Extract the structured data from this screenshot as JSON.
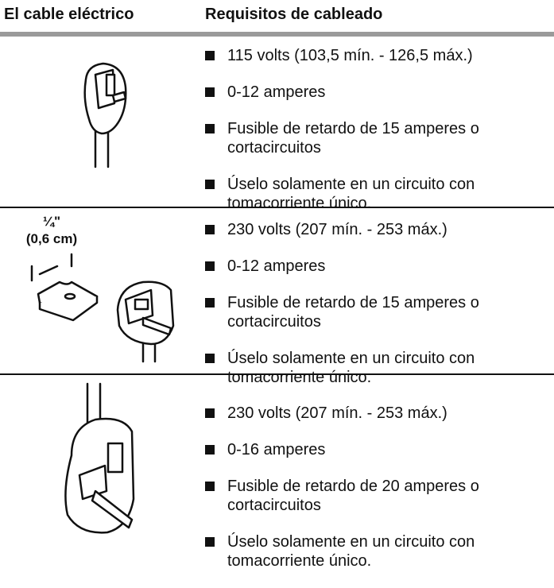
{
  "header": {
    "col1": "El cable eléctrico",
    "col2": "Requisitos de cableado"
  },
  "rows": [
    {
      "items": [
        "115 volts (103,5 mín. - 126,5 máx.)",
        "0-12 amperes",
        "Fusible de retardo de 15 amperes o cortacircuitos",
        "Úselo solamente en un circuito con tomacorriente único."
      ]
    },
    {
      "figure_labels": [
        "¼\"",
        "(0,6 cm)"
      ],
      "items": [
        "230 volts (207 mín. - 253 máx.)",
        "0-12 amperes",
        "Fusible de retardo de 15 amperes o cortacircuitos",
        "Úselo solamente en un circuito con tomacorriente único."
      ]
    },
    {
      "items": [
        "230 volts (207 mín. - 253 máx.)",
        "0-16 amperes",
        "Fusible de retardo de 20 amperes o cortacircuitos",
        "Úselo solamente en un circuito con tomacorriente único."
      ]
    }
  ]
}
